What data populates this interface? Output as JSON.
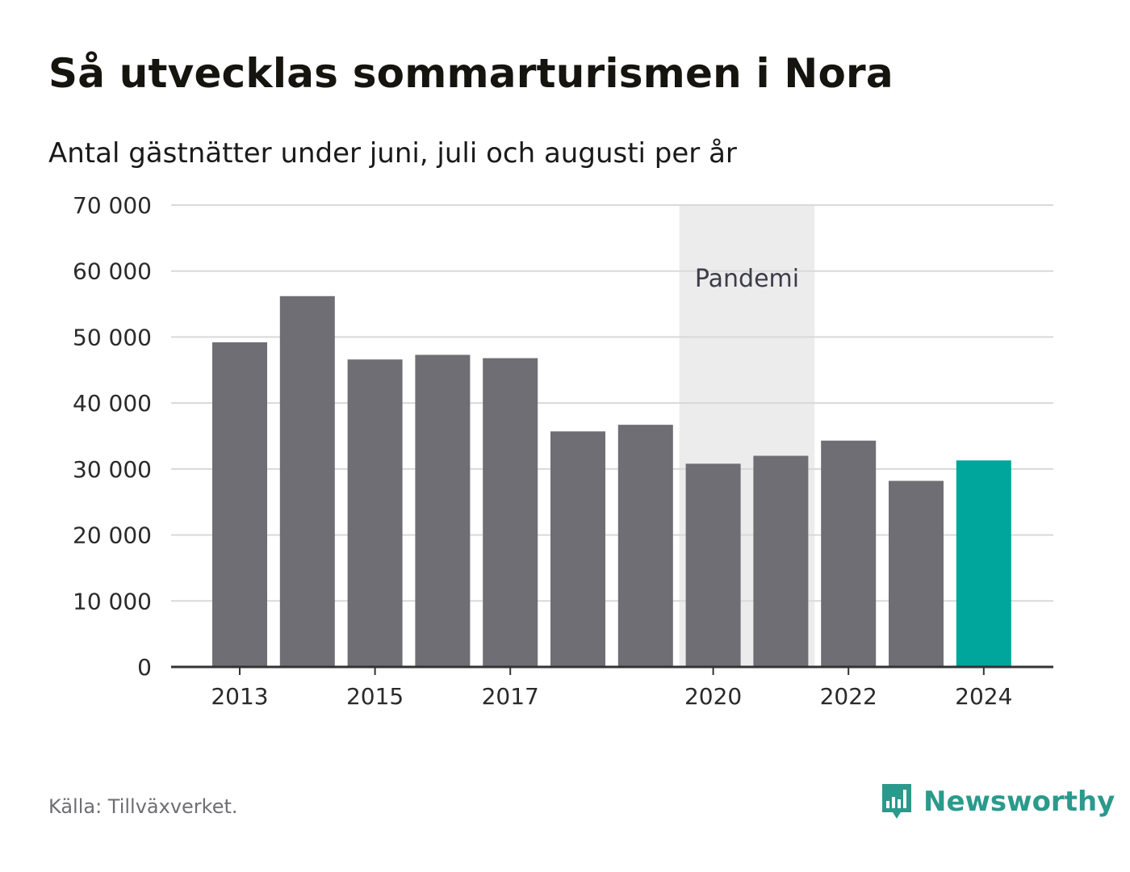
{
  "header": {
    "title": "Så utvecklas sommarturismen i Nora",
    "subtitle": "Antal gästnätter under juni, juli och augusti per år"
  },
  "footer": {
    "source": "Källa: Tillväxverket.",
    "brand": "Newsworthy"
  },
  "colors": {
    "bar": "#6f6e74",
    "highlight": "#00a59b",
    "band": "#ececec",
    "grid": "#d9d9d9",
    "axis": "#333333",
    "brand": "#2a9a8c"
  },
  "chart_data": {
    "type": "bar",
    "categories": [
      "2013",
      "2014",
      "2015",
      "2016",
      "2017",
      "2018",
      "2019",
      "2020",
      "2021",
      "2022",
      "2023",
      "2024"
    ],
    "values": [
      49200,
      56200,
      46600,
      47300,
      46800,
      35700,
      36700,
      30800,
      32000,
      34300,
      28200,
      31300
    ],
    "tick_labels": [
      "2013",
      "2015",
      "2017",
      "2020",
      "2022",
      "2024"
    ],
    "ylim": [
      0,
      70000
    ],
    "yticks": [
      0,
      10000,
      20000,
      30000,
      40000,
      50000,
      60000,
      70000
    ],
    "ytick_labels": [
      "0",
      "10 000",
      "20 000",
      "30 000",
      "40 000",
      "50 000",
      "60 000",
      "70 000"
    ],
    "highlight": "2024",
    "annotation": {
      "label": "Pandemi",
      "from": "2020",
      "to": "2021"
    },
    "grid": true
  }
}
